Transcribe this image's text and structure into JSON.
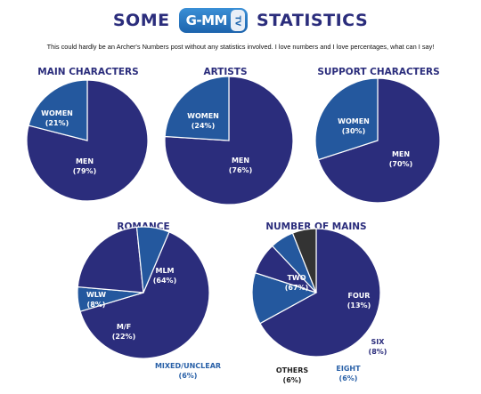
{
  "header": {
    "title_left": "SOME",
    "logo_text": "G-MM",
    "logo_badge": "TV",
    "title_right": "STATISTICS"
  },
  "subtitle": "This could hardly be an Archer's Numbers post without any statistics involved. I love numbers and I love percentages, what can I say!",
  "colors": {
    "navy": "#2b2d7c",
    "blue": "#24589e",
    "dark": "#333333",
    "title": "#2b2d7c",
    "outside_label_blue": "#2a61a8"
  },
  "chart_data": [
    {
      "type": "pie",
      "title": "MAIN CHARACTERS",
      "slices": [
        {
          "name": "MEN",
          "value": 79,
          "display": "(79%)",
          "color": "#2b2d7c"
        },
        {
          "name": "WOMEN",
          "value": 21,
          "display": "(21%)",
          "color": "#24589e"
        }
      ]
    },
    {
      "type": "pie",
      "title": "ARTISTS",
      "slices": [
        {
          "name": "MEN",
          "value": 76,
          "display": "(76%)",
          "color": "#2b2d7c"
        },
        {
          "name": "WOMEN",
          "value": 24,
          "display": "(24%)",
          "color": "#24589e"
        }
      ]
    },
    {
      "type": "pie",
      "title": "SUPPORT CHARACTERS",
      "slices": [
        {
          "name": "MEN",
          "value": 70,
          "display": "(70%)",
          "color": "#2b2d7c"
        },
        {
          "name": "WOMEN",
          "value": 30,
          "display": "(30%)",
          "color": "#24589e"
        }
      ]
    },
    {
      "type": "pie",
      "title": "ROMANCE",
      "slices": [
        {
          "name": "MLM",
          "value": 64,
          "display": "(64%)",
          "color": "#2b2d7c"
        },
        {
          "name": "MIXED/UNCLEAR",
          "value": 6,
          "display": "(6%)",
          "color": "#24589e",
          "outside": true
        },
        {
          "name": "M/F",
          "value": 22,
          "display": "(22%)",
          "color": "#2b2d7c"
        },
        {
          "name": "WLW",
          "value": 8,
          "display": "(8%)",
          "color": "#24589e"
        }
      ]
    },
    {
      "type": "pie",
      "title": "NUMBER OF MAINS",
      "slices": [
        {
          "name": "TWO",
          "value": 67,
          "display": "(67%)",
          "color": "#2b2d7c"
        },
        {
          "name": "FOUR",
          "value": 13,
          "display": "(13%)",
          "color": "#24589e"
        },
        {
          "name": "SIX",
          "value": 8,
          "display": "(8%)",
          "color": "#2b2d7c",
          "outside": true
        },
        {
          "name": "EIGHT",
          "value": 6,
          "display": "(6%)",
          "color": "#24589e",
          "outside": true
        },
        {
          "name": "OTHERS",
          "value": 6,
          "display": "(6%)",
          "color": "#333333",
          "outside": true
        }
      ]
    }
  ]
}
